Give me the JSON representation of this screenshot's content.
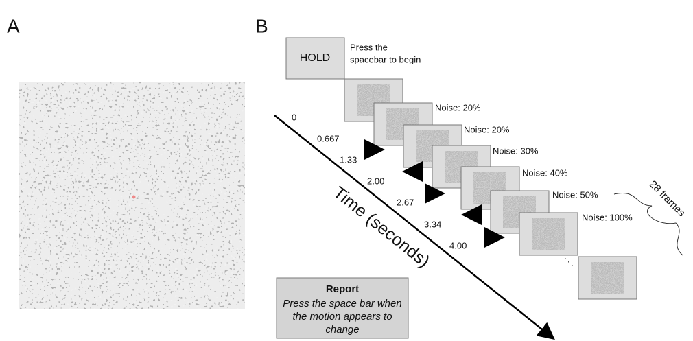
{
  "panel_labels": [
    "A",
    "B"
  ],
  "hold": {
    "label": "HOLD",
    "instruction": [
      "Press the",
      "spacebar to begin"
    ]
  },
  "noise_labels": [
    "Noise: 20%",
    "Noise: 20%",
    "Noise: 30%",
    "Noise: 40%",
    "Noise: 50%",
    "Noise: 100%"
  ],
  "timeline": {
    "label": "Time (seconds)",
    "times": [
      "0",
      "0.667",
      "1.33",
      "2.00",
      "2.67",
      "3.34",
      "4.00"
    ]
  },
  "frames_label": "28 frames",
  "report": {
    "title": "Report",
    "lines": [
      "Press the space bar when",
      "the motion appears to",
      "change"
    ]
  }
}
